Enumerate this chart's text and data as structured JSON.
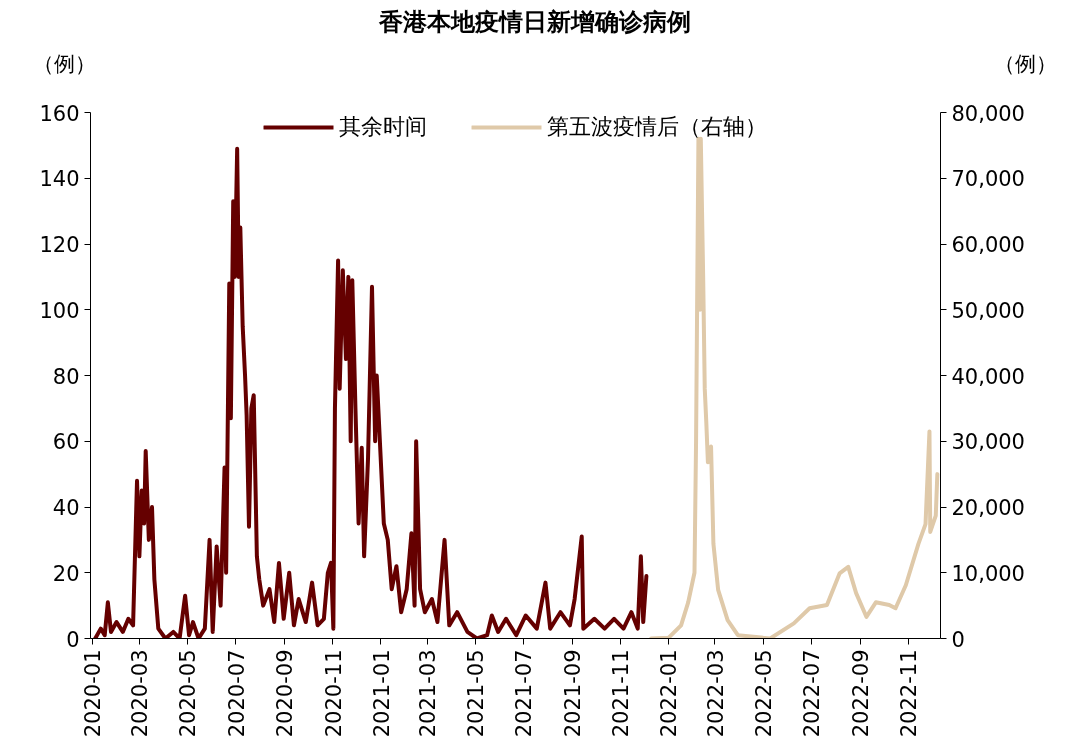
{
  "chart_data": {
    "type": "line",
    "title": "香港本地疫情日新增确诊病例",
    "ylabel": "（例）",
    "y2label": "（例）",
    "xlim": [
      "2019-12-30",
      "2022-12-12"
    ],
    "xticks": [
      "2020-01",
      "2020-03",
      "2020-05",
      "2020-07",
      "2020-09",
      "2020-11",
      "2021-01",
      "2021-03",
      "2021-05",
      "2021-07",
      "2021-09",
      "2021-11",
      "2022-01",
      "2022-03",
      "2022-05",
      "2022-07",
      "2022-09",
      "2022-11"
    ],
    "ylim": [
      0,
      160
    ],
    "yticks": [
      0,
      20,
      40,
      60,
      80,
      100,
      120,
      140,
      160
    ],
    "y2lim": [
      0,
      80000
    ],
    "y2ticks": [
      0,
      {
        "value": 10000,
        "label": "10,000"
      },
      {
        "value": 20000,
        "label": "20,000"
      },
      {
        "value": 30000,
        "label": "30,000"
      },
      {
        "value": 40000,
        "label": "40,000"
      },
      {
        "value": 50000,
        "label": "50,000"
      },
      {
        "value": 60000,
        "label": "60,000"
      },
      {
        "value": 70000,
        "label": "70,000"
      },
      {
        "value": 80000,
        "label": "80,000"
      }
    ],
    "legend": "top",
    "grid": false,
    "series": [
      {
        "name": "其余时间",
        "color": "#650000",
        "x": [
          "2020-01-05",
          "2020-01-12",
          "2020-01-17",
          "2020-01-21",
          "2020-01-25",
          "2020-02-01",
          "2020-02-09",
          "2020-02-16",
          "2020-02-22",
          "2020-02-27",
          "2020-03-01",
          "2020-03-04",
          "2020-03-07",
          "2020-03-09",
          "2020-03-13",
          "2020-03-17",
          "2020-03-20",
          "2020-03-25",
          "2020-04-03",
          "2020-04-13",
          "2020-04-21",
          "2020-04-28",
          "2020-05-03",
          "2020-05-08",
          "2020-05-15",
          "2020-05-23",
          "2020-05-29",
          "2020-06-02",
          "2020-06-07",
          "2020-06-12",
          "2020-06-17",
          "2020-06-19",
          "2020-06-23",
          "2020-06-25",
          "2020-06-28",
          "2020-06-30",
          "2020-07-03",
          "2020-07-05",
          "2020-07-07",
          "2020-07-10",
          "2020-07-13",
          "2020-07-15",
          "2020-07-18",
          "2020-07-21",
          "2020-07-24",
          "2020-07-28",
          "2020-07-31",
          "2020-08-05",
          "2020-08-13",
          "2020-08-19",
          "2020-08-25",
          "2020-08-31",
          "2020-09-07",
          "2020-09-13",
          "2020-09-19",
          "2020-09-28",
          "2020-10-06",
          "2020-10-13",
          "2020-10-21",
          "2020-10-26",
          "2020-10-30",
          "2020-11-02",
          "2020-11-04",
          "2020-11-08",
          "2020-11-10",
          "2020-11-14",
          "2020-11-18",
          "2020-11-21",
          "2020-11-24",
          "2020-11-26",
          "2020-11-30",
          "2020-12-04",
          "2020-12-08",
          "2020-12-11",
          "2020-12-16",
          "2020-12-21",
          "2020-12-25",
          "2020-12-27",
          "2020-12-31",
          "2021-01-05",
          "2021-01-10",
          "2021-01-15",
          "2021-01-21",
          "2021-01-27",
          "2021-02-03",
          "2021-02-09",
          "2021-02-13",
          "2021-02-15",
          "2021-02-20",
          "2021-02-26",
          "2021-03-07",
          "2021-03-14",
          "2021-03-23",
          "2021-03-29",
          "2021-04-08",
          "2021-04-21",
          "2021-05-03",
          "2021-05-16",
          "2021-05-22",
          "2021-05-30",
          "2021-06-09",
          "2021-06-22",
          "2021-07-04",
          "2021-07-18",
          "2021-07-29",
          "2021-08-04",
          "2021-08-17",
          "2021-08-29",
          "2021-09-04",
          "2021-09-13",
          "2021-09-15",
          "2021-09-29",
          "2021-10-12",
          "2021-10-24",
          "2021-11-05",
          "2021-11-15",
          "2021-11-23",
          "2021-11-27",
          "2021-11-30",
          "2021-12-04"
        ],
        "values": [
          0,
          3,
          1,
          11,
          2,
          5,
          2,
          6,
          4,
          48,
          25,
          45,
          35,
          57,
          30,
          40,
          18,
          3,
          0,
          2,
          0,
          13,
          1,
          5,
          0,
          3,
          30,
          2,
          28,
          10,
          52,
          20,
          108,
          67,
          133,
          110,
          149,
          110,
          125,
          95,
          80,
          68,
          34,
          70,
          74,
          25,
          18,
          10,
          15,
          5,
          23,
          6,
          20,
          4,
          12,
          5,
          17,
          4,
          6,
          20,
          23,
          3,
          70,
          115,
          76,
          112,
          85,
          110,
          60,
          109,
          70,
          35,
          58,
          25,
          55,
          107,
          60,
          80,
          60,
          35,
          30,
          15,
          22,
          8,
          15,
          32,
          10,
          60,
          15,
          8,
          12,
          5,
          30,
          4,
          8,
          2,
          0,
          1,
          7,
          2,
          6,
          1,
          7,
          3,
          17,
          3,
          8,
          4,
          12,
          31,
          3,
          6,
          3,
          6,
          3,
          8,
          3,
          25,
          5,
          19
        ]
      },
      {
        "name": "第五波疫情后（右轴）",
        "color": "#dfc9a9",
        "axis": "y2",
        "x": [
          "2021-12-10",
          "2022-01-01",
          "2022-01-17",
          "2022-01-26",
          "2022-02-03",
          "2022-02-05",
          "2022-02-08",
          "2022-02-10",
          "2022-02-11",
          "2022-02-14",
          "2022-02-16",
          "2022-02-18",
          "2022-02-20",
          "2022-02-24",
          "2022-02-27",
          "2022-03-05",
          "2022-03-17",
          "2022-03-30",
          "2022-05-10",
          "2022-06-09",
          "2022-06-29",
          "2022-07-21",
          "2022-08-06",
          "2022-08-17",
          "2022-08-27",
          "2022-09-09",
          "2022-09-21",
          "2022-10-08",
          "2022-10-16",
          "2022-10-29",
          "2022-11-14",
          "2022-11-23",
          "2022-11-28",
          "2022-11-29",
          "2022-12-06",
          "2022-12-08"
        ],
        "values": [
          0,
          100,
          2000,
          5500,
          10000,
          30000,
          76000,
          50000,
          76000,
          55000,
          38000,
          32800,
          26800,
          29200,
          14400,
          7400,
          2800,
          500,
          0,
          2300,
          4600,
          5100,
          9900,
          10900,
          6900,
          3300,
          5500,
          5100,
          4600,
          8100,
          14400,
          17400,
          31500,
          16200,
          18700,
          25000
        ]
      }
    ]
  }
}
